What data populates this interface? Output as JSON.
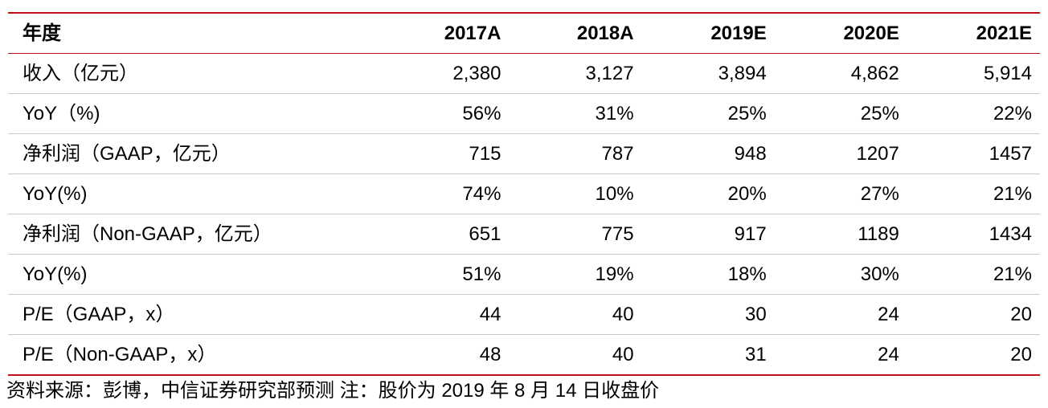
{
  "table": {
    "columns": [
      "年度",
      "2017A",
      "2018A",
      "2019E",
      "2020E",
      "2021E"
    ],
    "rows": [
      {
        "label": "收入（亿元）",
        "values": [
          "2,380",
          "3,127",
          "3,894",
          "4,862",
          "5,914"
        ]
      },
      {
        "label": "YoY（%)",
        "values": [
          "56%",
          "31%",
          "25%",
          "25%",
          "22%"
        ]
      },
      {
        "label": "净利润（GAAP，亿元）",
        "values": [
          "715",
          "787",
          "948",
          "1207",
          "1457"
        ]
      },
      {
        "label": "YoY(%)",
        "values": [
          "74%",
          "10%",
          "20%",
          "27%",
          "21%"
        ]
      },
      {
        "label": "净利润（Non-GAAP，亿元）",
        "values": [
          "651",
          "775",
          "917",
          "1189",
          "1434"
        ]
      },
      {
        "label": "YoY(%)",
        "values": [
          "51%",
          "19%",
          "18%",
          "30%",
          "21%"
        ]
      },
      {
        "label": "P/E（GAAP，x）",
        "values": [
          "44",
          "40",
          "30",
          "24",
          "20"
        ]
      },
      {
        "label": "P/E（Non-GAAP，x）",
        "values": [
          "48",
          "40",
          "31",
          "24",
          "20"
        ]
      }
    ]
  },
  "footer": {
    "source": "资料来源：彭博，中信证券研究部预测  注：股价为 2019 年 8 月 14 日收盘价"
  },
  "colors": {
    "rule_accent": "#c0101a",
    "row_divider": "#c9c9c9"
  }
}
